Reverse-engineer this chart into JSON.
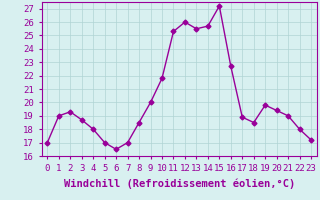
{
  "x": [
    0,
    1,
    2,
    3,
    4,
    5,
    6,
    7,
    8,
    9,
    10,
    11,
    12,
    13,
    14,
    15,
    16,
    17,
    18,
    19,
    20,
    21,
    22,
    23
  ],
  "y": [
    17.0,
    19.0,
    19.3,
    18.7,
    18.0,
    17.0,
    16.5,
    17.0,
    18.5,
    20.0,
    21.8,
    25.3,
    26.0,
    25.5,
    25.7,
    27.2,
    22.7,
    18.9,
    18.5,
    19.8,
    19.4,
    19.0,
    18.0,
    17.2
  ],
  "color": "#990099",
  "bg_color": "#d8f0f0",
  "grid_color": "#b0d4d4",
  "xlabel": "Windchill (Refroidissement éolien,°C)",
  "ylim": [
    16,
    27.5
  ],
  "xlim": [
    -0.5,
    23.5
  ],
  "yticks": [
    16,
    17,
    18,
    19,
    20,
    21,
    22,
    23,
    24,
    25,
    26,
    27
  ],
  "xticks": [
    0,
    1,
    2,
    3,
    4,
    5,
    6,
    7,
    8,
    9,
    10,
    11,
    12,
    13,
    14,
    15,
    16,
    17,
    18,
    19,
    20,
    21,
    22,
    23
  ],
  "marker": "D",
  "markersize": 2.5,
  "linewidth": 1.0,
  "xlabel_fontsize": 7.5,
  "tick_fontsize": 6.5
}
